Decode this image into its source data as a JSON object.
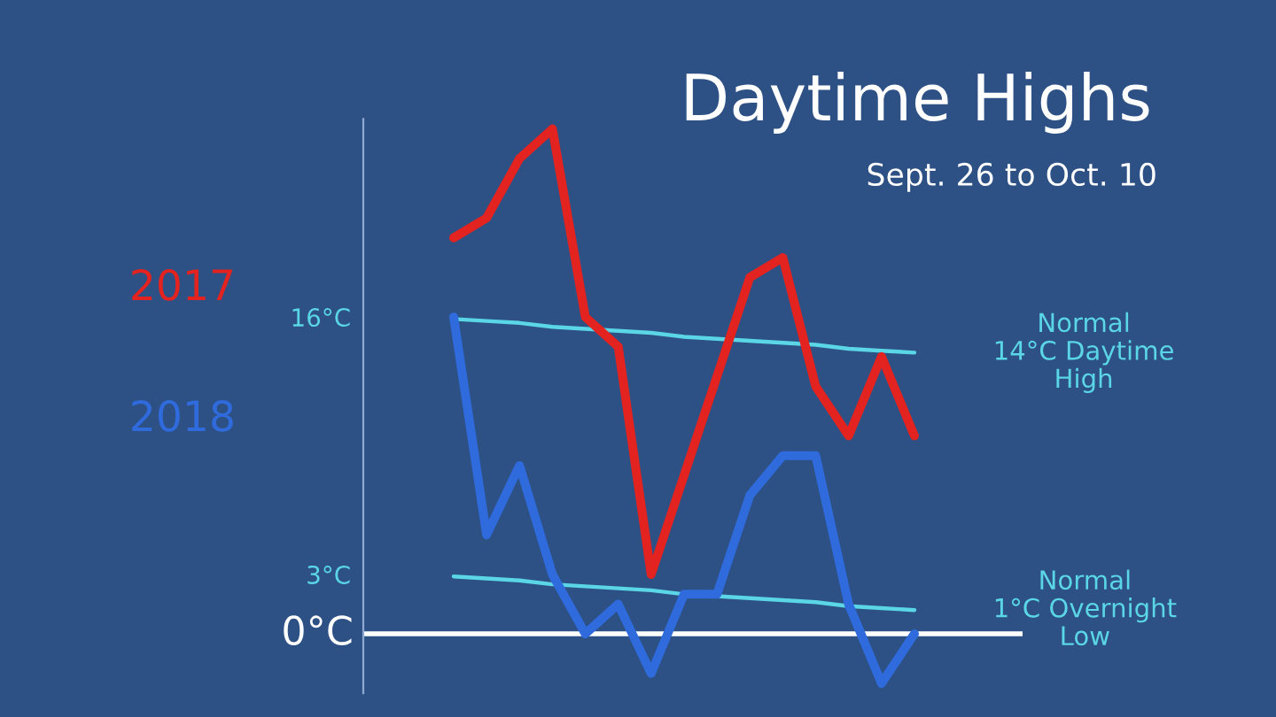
{
  "chart_data": {
    "type": "line",
    "title": "Daytime Highs",
    "subtitle": "Sept. 26 to Oct. 10",
    "categories": [
      null,
      null,
      null,
      null,
      null,
      null,
      null,
      null,
      null,
      null,
      null,
      null,
      null,
      null,
      null
    ],
    "ylim": [
      -3,
      26
    ],
    "yticks": [
      {
        "value": 16,
        "label": "16°C"
      },
      {
        "value": 3,
        "label": "3°C"
      }
    ],
    "tick_labels": "y",
    "ref_lines": [
      {
        "axis": "y",
        "value": 0,
        "label": "0°C",
        "color": "#ffffff"
      }
    ],
    "annotations": [
      "Normal\n14°C Daytime\nHigh",
      "Normal\n1°C Overnight\nLow"
    ],
    "series": [
      {
        "name": "2017",
        "color": "#e3231f",
        "values": [
          20,
          21,
          24,
          25.5,
          16,
          14.5,
          3,
          8,
          13,
          18,
          19,
          12.5,
          10,
          14,
          10
        ]
      },
      {
        "name": "2018",
        "color": "#2f6bdc",
        "values": [
          16,
          5,
          8.5,
          3,
          0,
          1.5,
          -2,
          2,
          2,
          7,
          9,
          9,
          1.5,
          -2.5,
          0
        ]
      },
      {
        "color": "#5ad6e6",
        "values": [
          15.9,
          15.8,
          15.7,
          15.5,
          15.4,
          15.3,
          15.2,
          15.0,
          14.9,
          14.8,
          14.7,
          14.6,
          14.4,
          14.3,
          14.2
        ]
      },
      {
        "color": "#5ad6e6",
        "values": [
          2.9,
          2.8,
          2.7,
          2.5,
          2.4,
          2.3,
          2.2,
          2.0,
          1.9,
          1.8,
          1.7,
          1.6,
          1.4,
          1.3,
          1.2
        ]
      }
    ]
  }
}
